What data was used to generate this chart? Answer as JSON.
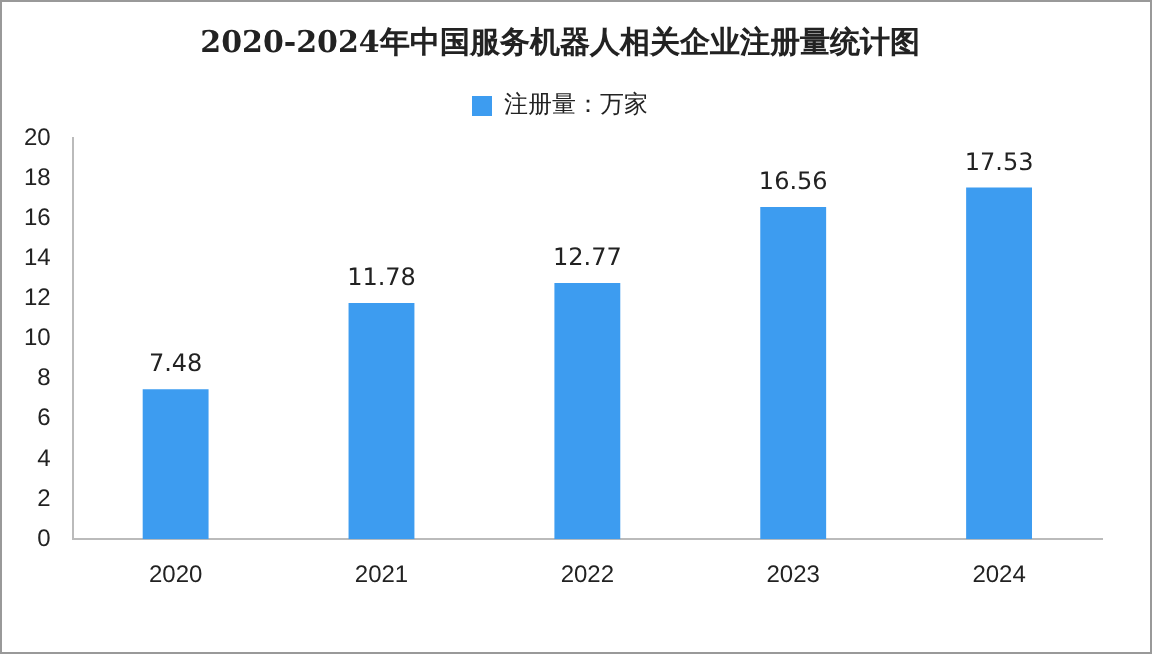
{
  "chart_data": {
    "type": "bar",
    "title": "2020-2024年中国服务机器人相关企业注册量统计图",
    "categories": [
      "2020",
      "2021",
      "2022",
      "2023",
      "2024"
    ],
    "series": [
      {
        "name": "注册量：万家",
        "color": "#3d9cf0",
        "values": [
          7.48,
          11.78,
          12.77,
          16.56,
          17.53
        ]
      }
    ],
    "ylim": [
      0,
      20
    ],
    "yticks": [
      0,
      2,
      4,
      6,
      8,
      10,
      12,
      14,
      16,
      18,
      20
    ],
    "grid": false,
    "legend": "top",
    "data_labels": true
  }
}
